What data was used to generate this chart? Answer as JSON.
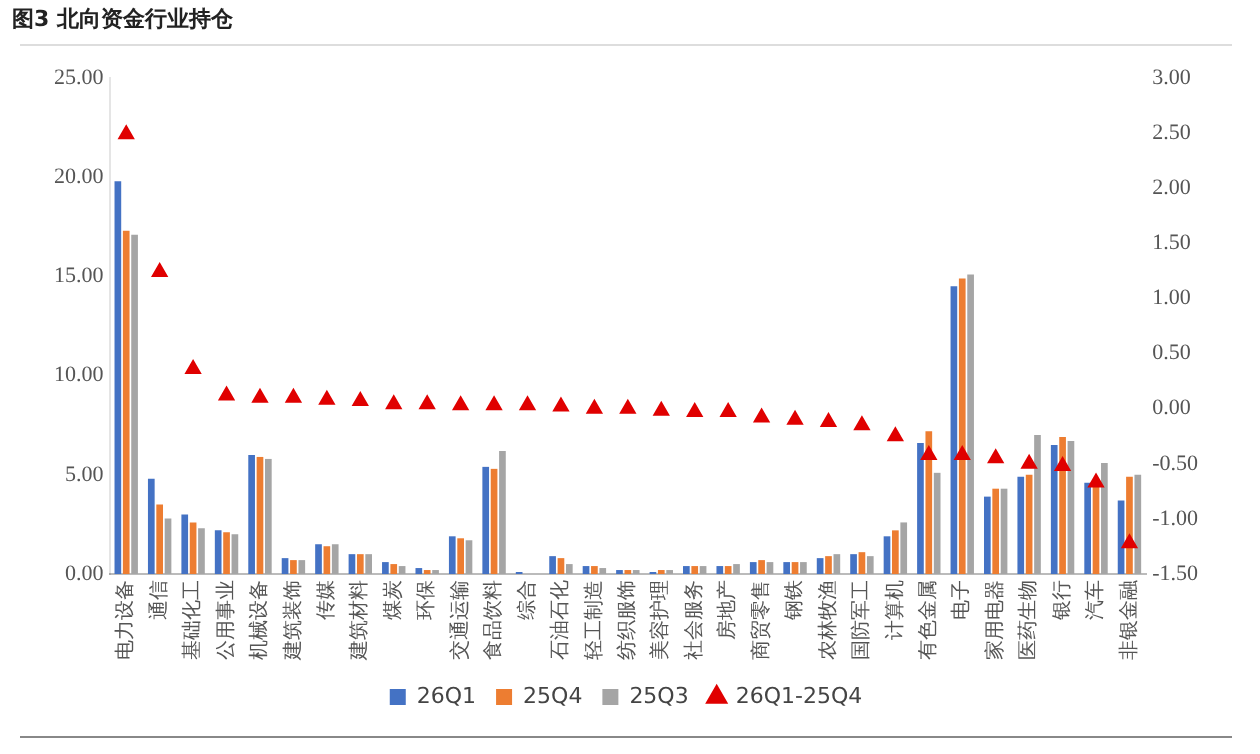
{
  "chart_data": {
    "type": "bar",
    "title": "图3 北向资金行业持仓",
    "categories": [
      "电力设备",
      "通信",
      "基础化工",
      "公用事业",
      "机械设备",
      "建筑装饰",
      "传媒",
      "建筑材料",
      "煤炭",
      "环保",
      "交通运输",
      "食品饮料",
      "综合",
      "石油石化",
      "轻工制造",
      "纺织服饰",
      "美容护理",
      "社会服务",
      "房地产",
      "商贸零售",
      "钢铁",
      "农林牧渔",
      "国防军工",
      "计算机",
      "有色金属",
      "电子",
      "家用电器",
      "医药生物",
      "银行",
      "汽车",
      "非银金融"
    ],
    "series": [
      {
        "name": "26Q1",
        "color": "#4472c4",
        "values": [
          19.8,
          4.8,
          3.0,
          2.2,
          6.0,
          0.8,
          1.5,
          1.0,
          0.6,
          0.3,
          1.9,
          5.4,
          0.1,
          0.9,
          0.4,
          0.2,
          0.1,
          0.4,
          0.4,
          0.6,
          0.6,
          0.8,
          1.0,
          1.9,
          6.6,
          14.5,
          3.9,
          4.9,
          6.5,
          4.6,
          3.7
        ]
      },
      {
        "name": "25Q4",
        "color": "#ed7d31",
        "values": [
          17.3,
          3.5,
          2.6,
          2.1,
          5.9,
          0.7,
          1.4,
          1.0,
          0.5,
          0.2,
          1.8,
          5.3,
          null,
          0.8,
          0.4,
          0.2,
          0.2,
          0.4,
          0.4,
          0.7,
          0.6,
          0.9,
          1.1,
          2.2,
          7.2,
          14.9,
          4.3,
          5.0,
          6.9,
          4.4,
          4.9
        ]
      },
      {
        "name": "25Q3",
        "color": "#a5a5a5",
        "values": [
          17.1,
          2.8,
          2.3,
          2.0,
          5.8,
          0.7,
          1.5,
          1.0,
          0.4,
          0.2,
          1.7,
          6.2,
          null,
          0.5,
          0.3,
          0.2,
          0.2,
          0.4,
          0.5,
          0.6,
          0.6,
          1.0,
          0.9,
          2.6,
          5.1,
          15.1,
          4.3,
          7.0,
          6.7,
          5.6,
          5.0
        ]
      },
      {
        "name": "26Q1-25Q4",
        "type": "scatter",
        "axis": "y2",
        "marker": "triangle",
        "color": "#e00000",
        "values": [
          2.49,
          1.24,
          0.36,
          0.12,
          0.1,
          0.1,
          0.08,
          0.07,
          0.04,
          0.04,
          0.03,
          0.03,
          0.03,
          0.02,
          0.0,
          0.0,
          -0.02,
          -0.03,
          -0.03,
          -0.08,
          -0.1,
          -0.12,
          -0.15,
          -0.25,
          -0.42,
          -0.42,
          -0.45,
          -0.5,
          -0.52,
          -0.67,
          -1.22
        ]
      }
    ],
    "ylim": [
      0,
      25
    ],
    "yticks": [
      {
        "value": 0,
        "label": "0.00"
      },
      {
        "value": 5,
        "label": "5.00"
      },
      {
        "value": 10,
        "label": "10.00"
      },
      {
        "value": 15,
        "label": "15.00"
      },
      {
        "value": 20,
        "label": "20.00"
      },
      {
        "value": 25,
        "label": "25.00"
      }
    ],
    "y2lim": [
      -1.5,
      3
    ],
    "y2ticks": [
      {
        "value": -1.5,
        "label": "-1.50"
      },
      {
        "value": -1,
        "label": "-1.00"
      },
      {
        "value": -0.5,
        "label": "-0.50"
      },
      {
        "value": 0,
        "label": "0.00"
      },
      {
        "value": 0.5,
        "label": "0.50"
      },
      {
        "value": 1,
        "label": "1.00"
      },
      {
        "value": 1.5,
        "label": "1.50"
      },
      {
        "value": 2,
        "label": "2.00"
      },
      {
        "value": 2.5,
        "label": "2.50"
      },
      {
        "value": 3,
        "label": "3.00"
      }
    ],
    "grid": false,
    "legend": "bottom"
  }
}
